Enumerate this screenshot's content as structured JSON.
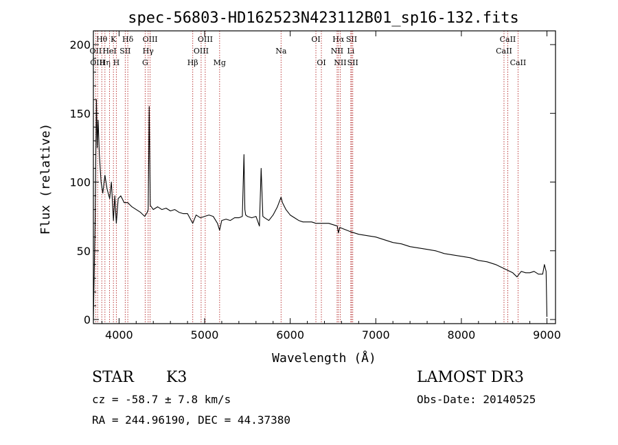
{
  "header": {
    "title": "spec-56803-HD162523N423112B01_sp16-132.fits"
  },
  "chart_data": {
    "type": "line",
    "title": "spec-56803-HD162523N423112B01_sp16-132.fits",
    "xlabel": "Wavelength (Å)",
    "ylabel": "Flux (relative)",
    "xlim": [
      3700,
      9100
    ],
    "ylim": [
      -3,
      210
    ],
    "grid": false,
    "x_ticks": [
      4000,
      5000,
      6000,
      7000,
      8000,
      9000
    ],
    "y_ticks": [
      0,
      50,
      100,
      150,
      200
    ],
    "x_tick_labels": [
      "4000",
      "5000",
      "6000",
      "7000",
      "8000",
      "9000"
    ],
    "y_tick_labels": [
      "0",
      "50",
      "100",
      "150",
      "200"
    ],
    "series": [
      {
        "x": [
          3700,
          3720,
          3735,
          3745,
          3755,
          3770,
          3790,
          3810,
          3835,
          3860,
          3890,
          3910,
          3934,
          3950,
          3968,
          3990,
          4020,
          4060,
          4102,
          4150,
          4200,
          4250,
          4300,
          4330,
          4340,
          4352,
          4365,
          4400,
          4450,
          4500,
          4550,
          4600,
          4650,
          4700,
          4750,
          4800,
          4861,
          4900,
          4950,
          5000,
          5050,
          5100,
          5150,
          5175,
          5200,
          5250,
          5300,
          5350,
          5400,
          5440,
          5460,
          5470,
          5480,
          5500,
          5550,
          5600,
          5640,
          5660,
          5680,
          5700,
          5750,
          5800,
          5850,
          5893,
          5910,
          5950,
          6000,
          6050,
          6100,
          6150,
          6200,
          6250,
          6300,
          6350,
          6400,
          6450,
          6500,
          6550,
          6563,
          6580,
          6620,
          6700,
          6800,
          6900,
          7000,
          7100,
          7200,
          7300,
          7400,
          7500,
          7600,
          7700,
          7800,
          7900,
          8000,
          8100,
          8200,
          8300,
          8400,
          8500,
          8600,
          8650,
          8700,
          8750,
          8800,
          8850,
          8900,
          8950,
          8970,
          8990,
          9000
        ],
        "y": [
          0,
          70,
          160,
          125,
          145,
          120,
          100,
          92,
          105,
          95,
          88,
          100,
          72,
          90,
          70,
          88,
          90,
          85,
          85,
          82,
          80,
          78,
          75,
          78,
          80,
          155,
          83,
          80,
          82,
          80,
          81,
          79,
          80,
          78,
          77,
          77,
          70,
          76,
          74,
          75,
          76,
          75,
          70,
          65,
          72,
          73,
          72,
          74,
          74,
          75,
          120,
          80,
          76,
          75,
          74,
          75,
          68,
          110,
          75,
          74,
          72,
          76,
          82,
          89,
          85,
          80,
          76,
          74,
          72,
          71,
          71,
          71,
          70,
          70,
          70,
          70,
          69,
          68,
          63,
          67,
          66,
          64,
          62,
          61,
          60,
          58,
          56,
          55,
          53,
          52,
          51,
          50,
          48,
          47,
          46,
          45,
          43,
          42,
          40,
          37,
          34,
          31,
          35,
          34,
          34,
          35,
          33,
          33,
          40,
          35,
          2
        ]
      }
    ],
    "line_markers": [
      {
        "label": "Hθ",
        "x": 3798,
        "row": 0
      },
      {
        "label": "OII",
        "x": 3727,
        "row": 1
      },
      {
        "label": "OIII",
        "x": 3750,
        "row": 2
      },
      {
        "label": "Hη",
        "x": 3835,
        "row": 2
      },
      {
        "label": "K",
        "x": 3934,
        "row": 0
      },
      {
        "label": "HeI",
        "x": 3889,
        "row": 1
      },
      {
        "label": "H",
        "x": 3968,
        "row": 2
      },
      {
        "label": "Hδ",
        "x": 4102,
        "row": 0
      },
      {
        "label": "SII",
        "x": 4072,
        "row": 1
      },
      {
        "label": "OIII",
        "x": 4363,
        "row": 0
      },
      {
        "label": "Hγ",
        "x": 4340,
        "row": 1
      },
      {
        "label": "G",
        "x": 4305,
        "row": 2
      },
      {
        "label": "Hβ",
        "x": 4861,
        "row": 2
      },
      {
        "label": "OIII",
        "x": 5007,
        "row": 0
      },
      {
        "label": "OIII",
        "x": 4959,
        "row": 1
      },
      {
        "label": "Mg",
        "x": 5175,
        "row": 2
      },
      {
        "label": "Na",
        "x": 5893,
        "row": 1
      },
      {
        "label": "OI",
        "x": 6300,
        "row": 0
      },
      {
        "label": "OI",
        "x": 6364,
        "row": 2
      },
      {
        "label": "Hα",
        "x": 6563,
        "row": 0
      },
      {
        "label": "SII",
        "x": 6717,
        "row": 0
      },
      {
        "label": "NII",
        "x": 6548,
        "row": 1
      },
      {
        "label": "Li",
        "x": 6708,
        "row": 1
      },
      {
        "label": "NII",
        "x": 6584,
        "row": 2
      },
      {
        "label": "SII",
        "x": 6731,
        "row": 2
      },
      {
        "label": "CaII",
        "x": 8542,
        "row": 0
      },
      {
        "label": "CaII",
        "x": 8498,
        "row": 1
      },
      {
        "label": "CaII",
        "x": 8662,
        "row": 2
      }
    ]
  },
  "info": {
    "object_class": "STAR",
    "subclass": "K3",
    "survey": "LAMOST DR3",
    "velocity": "cz = -58.7 ± 7.8 km/s",
    "obs_date": "Obs-Date: 20140525",
    "coordinates": "RA = 244.96190, DEC =  44.37380"
  }
}
